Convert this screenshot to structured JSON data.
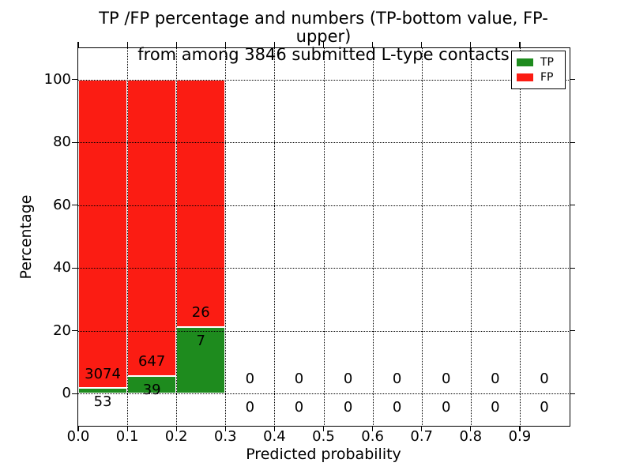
{
  "figure": {
    "title_line1": "TP /FP percentage and numbers (TP-bottom value, FP-upper)",
    "title_line2": "from among 3846 submitted L-type contacts",
    "background": "#ffffff"
  },
  "chart_data": {
    "type": "bar",
    "stacked": true,
    "title": "TP /FP percentage and numbers (TP-bottom value, FP-upper)\nfrom among 3846 submitted L-type contacts",
    "total_submitted": 3846,
    "xlabel": "Predicted probability",
    "ylabel": "Percentage",
    "xlim": [
      0.0,
      1.0
    ],
    "ylim": [
      -10,
      110
    ],
    "grid": {
      "style": "dotted",
      "color": "#000000"
    },
    "legend": {
      "position": "upper right",
      "entries": [
        {
          "name": "TP",
          "color": "#1e8b1e"
        },
        {
          "name": "FP",
          "color": "#fb1c13"
        }
      ]
    },
    "xticks": [
      {
        "value": 0.0,
        "label": "0.0"
      },
      {
        "value": 0.1,
        "label": "0.1"
      },
      {
        "value": 0.2,
        "label": "0.2"
      },
      {
        "value": 0.3,
        "label": "0.3"
      },
      {
        "value": 0.4,
        "label": "0.4"
      },
      {
        "value": 0.5,
        "label": "0.5"
      },
      {
        "value": 0.6,
        "label": "0.6"
      },
      {
        "value": 0.7,
        "label": "0.7"
      },
      {
        "value": 0.8,
        "label": "0.8"
      },
      {
        "value": 0.9,
        "label": "0.9"
      }
    ],
    "yticks": [
      {
        "value": 0,
        "label": "0"
      },
      {
        "value": 20,
        "label": "20"
      },
      {
        "value": 40,
        "label": "40"
      },
      {
        "value": 60,
        "label": "60"
      },
      {
        "value": 80,
        "label": "80"
      },
      {
        "value": 100,
        "label": "100"
      }
    ],
    "bins": [
      {
        "range": "0.0-0.1",
        "x_start": 0.0,
        "x_end": 0.1,
        "tp_count": 53,
        "fp_count": 3074,
        "tp_pct": 1.7,
        "fp_pct": 98.3
      },
      {
        "range": "0.1-0.2",
        "x_start": 0.1,
        "x_end": 0.2,
        "tp_count": 39,
        "fp_count": 647,
        "tp_pct": 5.69,
        "fp_pct": 94.31
      },
      {
        "range": "0.2-0.3",
        "x_start": 0.2,
        "x_end": 0.3,
        "tp_count": 7,
        "fp_count": 26,
        "tp_pct": 21.21,
        "fp_pct": 78.79
      },
      {
        "range": "0.3-0.4",
        "x_start": 0.3,
        "x_end": 0.4,
        "tp_count": 0,
        "fp_count": 0,
        "tp_pct": 0,
        "fp_pct": 0
      },
      {
        "range": "0.4-0.5",
        "x_start": 0.4,
        "x_end": 0.5,
        "tp_count": 0,
        "fp_count": 0,
        "tp_pct": 0,
        "fp_pct": 0
      },
      {
        "range": "0.5-0.6",
        "x_start": 0.5,
        "x_end": 0.6,
        "tp_count": 0,
        "fp_count": 0,
        "tp_pct": 0,
        "fp_pct": 0
      },
      {
        "range": "0.6-0.7",
        "x_start": 0.6,
        "x_end": 0.7,
        "tp_count": 0,
        "fp_count": 0,
        "tp_pct": 0,
        "fp_pct": 0
      },
      {
        "range": "0.7-0.8",
        "x_start": 0.7,
        "x_end": 0.8,
        "tp_count": 0,
        "fp_count": 0,
        "tp_pct": 0,
        "fp_pct": 0
      },
      {
        "range": "0.8-0.9",
        "x_start": 0.8,
        "x_end": 0.9,
        "tp_count": 0,
        "fp_count": 0,
        "tp_pct": 0,
        "fp_pct": 0
      },
      {
        "range": "0.9-1.0",
        "x_start": 0.9,
        "x_end": 1.0,
        "tp_count": 0,
        "fp_count": 0,
        "tp_pct": 0,
        "fp_pct": 0
      }
    ]
  }
}
